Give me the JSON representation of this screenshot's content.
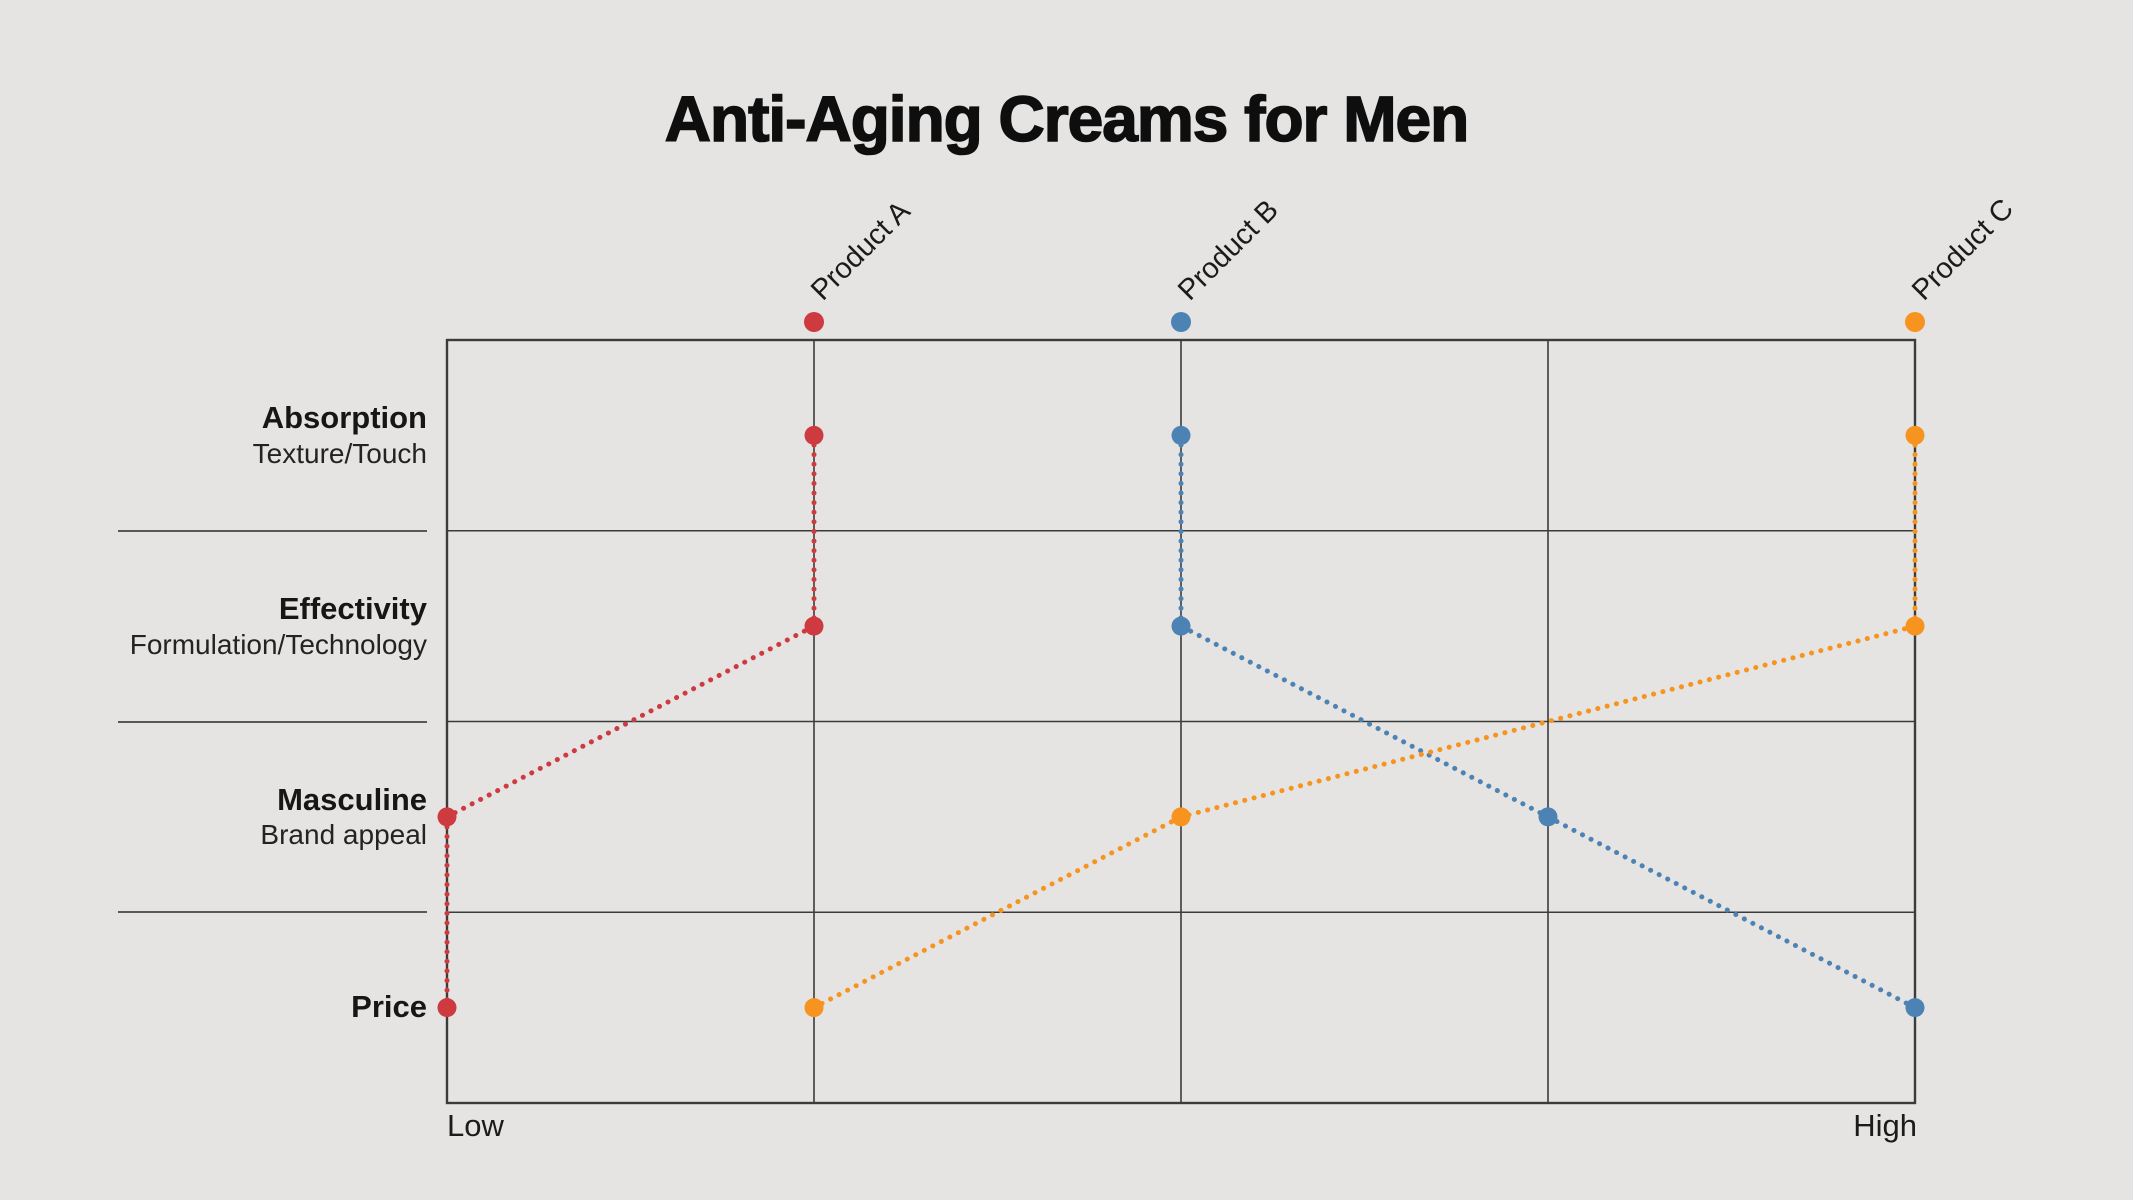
{
  "title": "Anti-Aging Creams for Men",
  "x_axis": {
    "low_label": "Low",
    "high_label": "High"
  },
  "rows": [
    {
      "label": "Absorption",
      "sublabel": "Texture/Touch"
    },
    {
      "label": "Effectivity",
      "sublabel": "Formulation/Technology"
    },
    {
      "label": "Masculine",
      "sublabel": "Brand appeal"
    },
    {
      "label": "Price",
      "sublabel": ""
    }
  ],
  "chart_data": {
    "type": "line",
    "variant": "parallel-coordinates-slope-chart",
    "title": "Anti-Aging Creams for Men",
    "categories": [
      "Absorption (Texture/Touch)",
      "Effectivity (Formulation/Technology)",
      "Masculine (Brand appeal)",
      "Price"
    ],
    "xlabel": "",
    "ylabel": "",
    "x_scale": {
      "range": [
        0,
        4
      ],
      "min_label": "Low",
      "max_label": "High",
      "note": "0 = Low (left edge), 4 = High (right edge); gridline columns at 1,2,3"
    },
    "grid": {
      "columns": 4,
      "rows": 4,
      "grid_on": true
    },
    "legend_position": "top",
    "line_style": "dotted",
    "series": [
      {
        "name": "Product A",
        "color": "#cd3a40",
        "values": [
          1,
          1,
          0,
          0
        ]
      },
      {
        "name": "Product B",
        "color": "#4c83b4",
        "values": [
          2,
          2,
          3,
          4
        ]
      },
      {
        "name": "Product C",
        "color": "#f6941f",
        "values": [
          4,
          4,
          2,
          1
        ]
      }
    ]
  },
  "colors": {
    "background": "#e5e4e2",
    "grid": "#3b3b3b",
    "separator": "#58585a",
    "title_text": "#0e0e0e",
    "label_text": "#1b1b1b"
  }
}
